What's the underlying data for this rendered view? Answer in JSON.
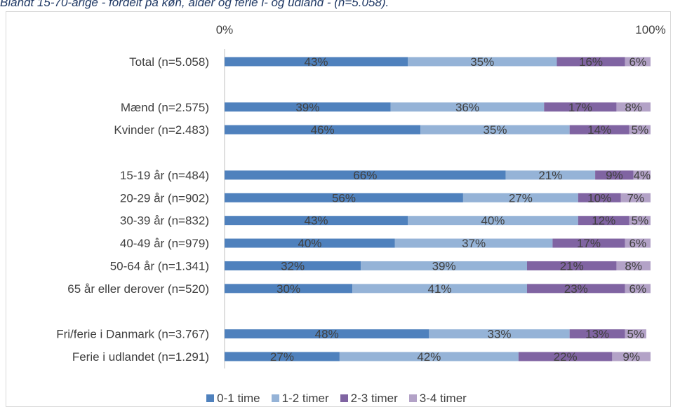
{
  "title": "Blandt 15-70-årige - fordelt på køn, alder og ferie i- og udland - (n=5.058).",
  "chart_data": {
    "type": "bar",
    "orientation": "horizontal",
    "stacking": "percent",
    "xlim": [
      0,
      100
    ],
    "tick_labels": [
      "0%",
      "100%"
    ],
    "legend_position": "bottom",
    "grid": false,
    "categories": [
      "Total (n=5.058)",
      "",
      "Mænd (n=2.575)",
      "Kvinder (n=2.483)",
      "",
      "15-19 år (n=484)",
      "20-29 år (n=902)",
      "30-39 år (n=832)",
      "40-49 år (n=979)",
      "50-64 år (n=1.341)",
      "65 år eller derover (n=520)",
      "",
      "Fri/ferie i Danmark (n=3.767)",
      "Ferie i udlandet (n=1.291)"
    ],
    "series": [
      {
        "name": "0-1 time",
        "color": "#4f81bd",
        "values": [
          43,
          null,
          39,
          46,
          null,
          66,
          56,
          43,
          40,
          32,
          30,
          null,
          48,
          27
        ]
      },
      {
        "name": "1-2 timer",
        "color": "#95b3d7",
        "values": [
          35,
          null,
          36,
          35,
          null,
          21,
          27,
          40,
          37,
          39,
          41,
          null,
          33,
          42
        ]
      },
      {
        "name": "2-3 timer",
        "color": "#8064a2",
        "values": [
          16,
          null,
          17,
          14,
          null,
          9,
          10,
          12,
          17,
          21,
          23,
          null,
          13,
          22
        ]
      },
      {
        "name": "3-4 timer",
        "color": "#b3a2c7",
        "values": [
          6,
          null,
          8,
          5,
          null,
          4,
          7,
          5,
          6,
          8,
          6,
          null,
          5,
          9
        ]
      }
    ]
  }
}
